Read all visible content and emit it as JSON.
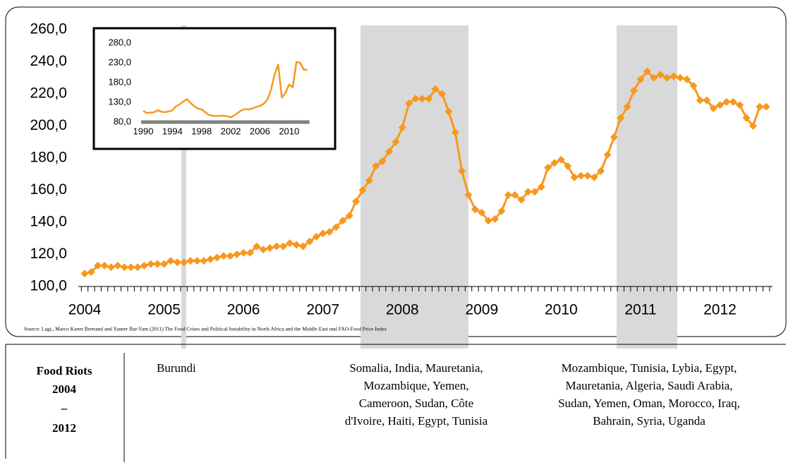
{
  "chart_data": [
    {
      "type": "line",
      "color": "#f7981d",
      "marker": "diamond",
      "source": "Source: Lagi,, Marco Karen Bertrand and Yaneer Bar-Yam (2011) The Food Crises and Political Instability in North Africa and the Middle East und FAO-Food Price Index",
      "ylim": [
        100,
        260
      ],
      "yticks": [
        {
          "value": 100,
          "label": "100,0"
        },
        {
          "value": 120,
          "label": "120,0"
        },
        {
          "value": 140,
          "label": "140,0"
        },
        {
          "value": 160,
          "label": "160,0"
        },
        {
          "value": 180,
          "label": "180,0"
        },
        {
          "value": 200,
          "label": "200,0"
        },
        {
          "value": 220,
          "label": "220,0"
        },
        {
          "value": 240,
          "label": "240,0"
        },
        {
          "value": 260,
          "label": "260,0"
        }
      ],
      "categories": [
        "2004",
        null,
        null,
        null,
        null,
        null,
        null,
        null,
        null,
        null,
        null,
        null,
        "2005",
        null,
        null,
        null,
        null,
        null,
        null,
        null,
        null,
        null,
        null,
        null,
        "2006",
        null,
        null,
        null,
        null,
        null,
        null,
        null,
        null,
        null,
        null,
        null,
        "2007",
        null,
        null,
        null,
        null,
        null,
        null,
        null,
        null,
        null,
        null,
        null,
        "2008",
        null,
        null,
        null,
        null,
        null,
        null,
        null,
        null,
        null,
        null,
        null,
        "2009",
        null,
        null,
        null,
        null,
        null,
        null,
        null,
        null,
        null,
        null,
        null,
        "2010",
        null,
        null,
        null,
        null,
        null,
        null,
        null,
        null,
        null,
        null,
        null,
        "2011",
        null,
        null,
        null,
        null,
        null,
        null,
        null,
        null,
        null,
        null,
        null,
        "2012",
        null,
        null,
        null,
        null,
        null,
        null,
        null
      ],
      "values": [
        108,
        109,
        113,
        113,
        112,
        113,
        112,
        112,
        112,
        113,
        114,
        114,
        114,
        116,
        115,
        115,
        116,
        116,
        116,
        117,
        118,
        119,
        119,
        120,
        121,
        121,
        125,
        123,
        124,
        125,
        125,
        127,
        126,
        125,
        128,
        131,
        133,
        134,
        137,
        141,
        144,
        153,
        160,
        166,
        175,
        178,
        184,
        190,
        199,
        214,
        217,
        217,
        217,
        223,
        220,
        209,
        196,
        172,
        157,
        148,
        146,
        141,
        142,
        147,
        157,
        157,
        154,
        159,
        159,
        162,
        174,
        177,
        179,
        175,
        168,
        169,
        169,
        168,
        172,
        182,
        193,
        205,
        212,
        222,
        229,
        234,
        230,
        232,
        230,
        231,
        230,
        229,
        225,
        216,
        216,
        211,
        213,
        215,
        215,
        213,
        205,
        200,
        212,
        212
      ]
    },
    {
      "type": "line",
      "color": "#f7981d",
      "ylim": [
        80,
        280
      ],
      "yticks": [
        {
          "value": 80,
          "label": "80,0"
        },
        {
          "value": 130,
          "label": "130,0"
        },
        {
          "value": 180,
          "label": "180,0"
        },
        {
          "value": 230,
          "label": "230,0"
        },
        {
          "value": 280,
          "label": "280,0"
        }
      ],
      "categories": [
        "1990",
        null,
        null,
        null,
        null,
        null,
        null,
        null,
        "1994",
        null,
        null,
        null,
        null,
        null,
        null,
        null,
        "1998",
        null,
        null,
        null,
        null,
        null,
        null,
        null,
        "2002",
        null,
        null,
        null,
        null,
        null,
        null,
        null,
        "2006",
        null,
        null,
        null,
        null,
        null,
        null,
        null,
        "2010",
        null,
        null,
        null,
        null,
        null
      ],
      "values": [
        108,
        103,
        104,
        105,
        110,
        106,
        105,
        107,
        110,
        120,
        125,
        132,
        138,
        128,
        120,
        114,
        112,
        105,
        98,
        96,
        95,
        96,
        96,
        95,
        92,
        97,
        104,
        110,
        113,
        112,
        115,
        118,
        121,
        126,
        136,
        160,
        200,
        225,
        142,
        154,
        175,
        168,
        232,
        230,
        213,
        212
      ]
    }
  ],
  "table": {
    "heading": [
      "Food Riots",
      "2004",
      "–",
      "2012"
    ],
    "cells": [
      [
        "Burundi"
      ],
      [
        "Somalia, India, Mauretania,",
        "Mozambique, Yemen,",
        "Cameroon, Sudan, Côte",
        "d'Ivoire, Haiti, Egypt, Tunisia"
      ],
      [
        "Mozambique, Tunisia, Lybia, Egypt,",
        "Mauretania, Algeria, Saudi Arabia,",
        "Sudan, Yemen, Oman, Morocco, Iraq,",
        "Bahrain, Syria, Uganda"
      ]
    ]
  }
}
